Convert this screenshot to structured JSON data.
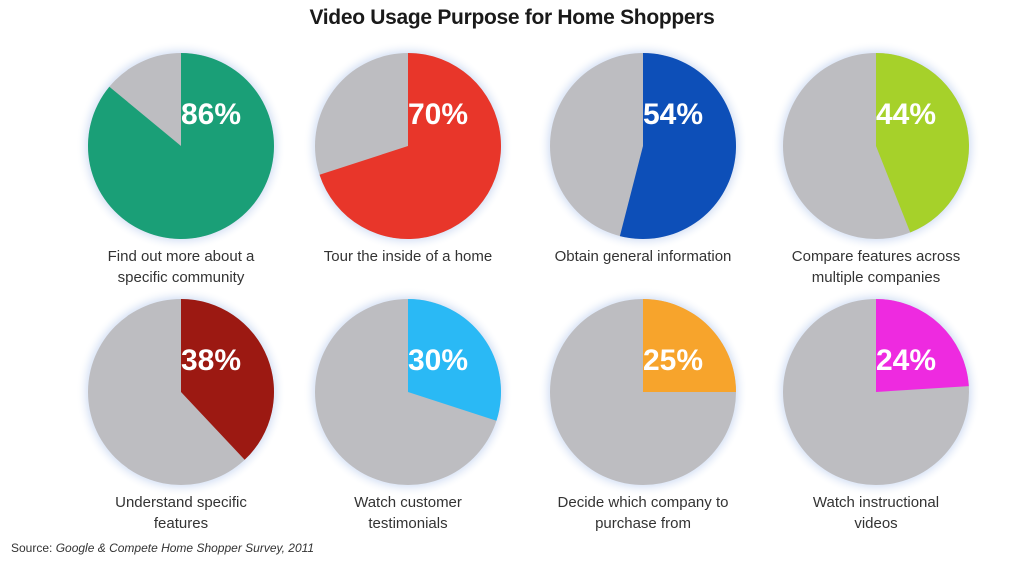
{
  "chart_data": {
    "type": "pie",
    "title": "Video Usage Purpose for Home Shoppers",
    "remainder_color": "#bdbdc1",
    "series": [
      {
        "label": "Find out more about a specific community",
        "label_lines": [
          "Find out more about a",
          "specific community"
        ],
        "value": 86,
        "value_label": "86%",
        "color": "#1a9f77"
      },
      {
        "label": "Tour the inside of a home",
        "label_lines": [
          "Tour the inside of a home"
        ],
        "value": 70,
        "value_label": "70%",
        "color": "#e8362a"
      },
      {
        "label": "Obtain general information",
        "label_lines": [
          "Obtain general information"
        ],
        "value": 54,
        "value_label": "54%",
        "color": "#0d4fb8"
      },
      {
        "label": "Compare features across multiple companies",
        "label_lines": [
          "Compare features across",
          "multiple companies"
        ],
        "value": 44,
        "value_label": "44%",
        "color": "#a6d12a"
      },
      {
        "label": "Understand specific features",
        "label_lines": [
          "Understand specific",
          "features"
        ],
        "value": 38,
        "value_label": "38%",
        "color": "#9c1912"
      },
      {
        "label": "Watch customer testimonials",
        "label_lines": [
          "Watch customer",
          "testimonials"
        ],
        "value": 30,
        "value_label": "30%",
        "color": "#2ab9f5"
      },
      {
        "label": "Decide which company to purchase from",
        "label_lines": [
          "Decide which company to",
          "purchase from"
        ],
        "value": 25,
        "value_label": "25%",
        "color": "#f7a42c"
      },
      {
        "label": "Watch instructional videos",
        "label_lines": [
          "Watch instructional",
          "videos"
        ],
        "value": 24,
        "value_label": "24%",
        "color": "#ee2ae0"
      }
    ]
  },
  "source": {
    "prefix": "Source: ",
    "text": "Google & Compete Home Shopper Survey, 2011"
  }
}
